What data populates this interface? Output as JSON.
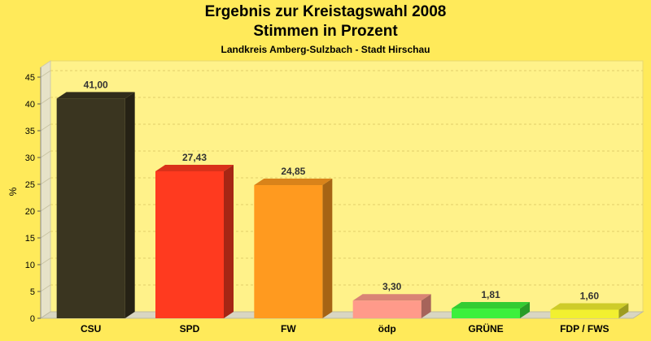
{
  "chart_data": {
    "type": "bar",
    "title": "Ergebnis zur Kreistagswahl 2008",
    "subtitle": "Stimmen in Prozent",
    "subtitle2": "Landkreis Amberg-Sulzbach - Stadt Hirschau",
    "ylabel": "%",
    "xlabel": "",
    "ylim": [
      0,
      45
    ],
    "yticks": [
      0,
      5,
      10,
      15,
      20,
      25,
      30,
      35,
      40,
      45
    ],
    "grid": true,
    "categories": [
      "CSU",
      "SPD",
      "FW",
      "ödp",
      "GRÜNE",
      "FDP / FWS"
    ],
    "values": [
      41.0,
      27.43,
      24.85,
      3.3,
      1.81,
      1.6
    ],
    "value_labels": [
      "41,00",
      "27,43",
      "24,85",
      "3,30",
      "1,81",
      "1,60"
    ],
    "colors": [
      "#3a3520",
      "#ff3a1f",
      "#ff9a1f",
      "#ff9a8a",
      "#3cf03c",
      "#f2f030"
    ]
  }
}
